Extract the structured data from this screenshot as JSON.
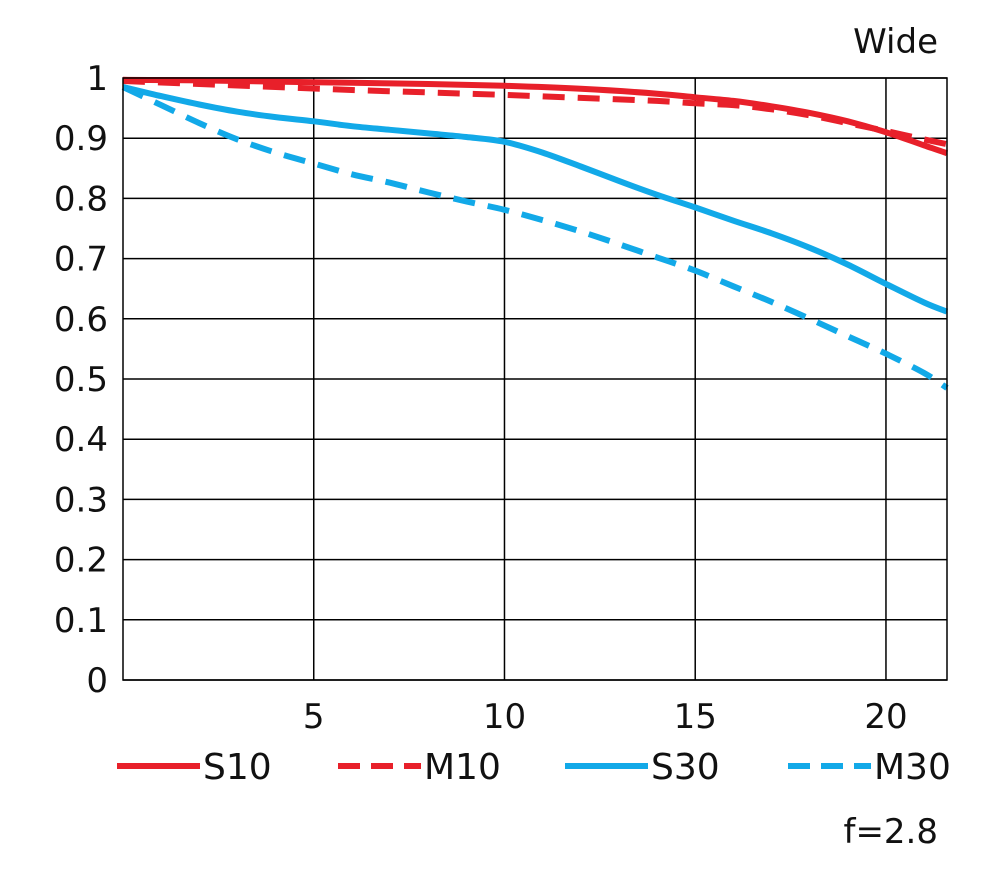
{
  "chart_data": {
    "type": "line",
    "title": "",
    "xlabel": "",
    "ylabel": "",
    "xlim": [
      0,
      21.6
    ],
    "ylim": [
      0,
      1
    ],
    "x_ticks": [
      5,
      10,
      15,
      20
    ],
    "y_ticks": [
      0,
      0.1,
      0.2,
      0.3,
      0.4,
      0.5,
      0.6,
      0.7,
      0.8,
      0.9,
      1
    ],
    "x_tick_labels": [
      "5",
      "10",
      "15",
      "20"
    ],
    "y_tick_labels": [
      "0",
      "0.1",
      "0.2",
      "0.3",
      "0.4",
      "0.5",
      "0.6",
      "0.7",
      "0.8",
      "0.9",
      "1"
    ],
    "grid": true,
    "top_right_label": "Wide",
    "bottom_right_label": "f=2.8",
    "legend_position": "bottom",
    "series": [
      {
        "name": "S10",
        "color": "#e8202a",
        "dashed": false,
        "points": [
          [
            0,
            0.997
          ],
          [
            2,
            0.996
          ],
          [
            4,
            0.994
          ],
          [
            6,
            0.992
          ],
          [
            8,
            0.99
          ],
          [
            10,
            0.987
          ],
          [
            12,
            0.982
          ],
          [
            14,
            0.974
          ],
          [
            15,
            0.968
          ],
          [
            16,
            0.962
          ],
          [
            17,
            0.953
          ],
          [
            18,
            0.942
          ],
          [
            19,
            0.928
          ],
          [
            20,
            0.91
          ],
          [
            21,
            0.888
          ],
          [
            21.6,
            0.875
          ]
        ]
      },
      {
        "name": "M10",
        "color": "#e8202a",
        "dashed": true,
        "points": [
          [
            0,
            0.995
          ],
          [
            2,
            0.99
          ],
          [
            4,
            0.985
          ],
          [
            6,
            0.98
          ],
          [
            8,
            0.976
          ],
          [
            10,
            0.972
          ],
          [
            12,
            0.967
          ],
          [
            14,
            0.962
          ],
          [
            15,
            0.958
          ],
          [
            16,
            0.955
          ],
          [
            17,
            0.948
          ],
          [
            18,
            0.938
          ],
          [
            19,
            0.925
          ],
          [
            20,
            0.912
          ],
          [
            21,
            0.898
          ],
          [
            21.6,
            0.89
          ]
        ]
      },
      {
        "name": "S30",
        "color": "#12a9e8",
        "dashed": false,
        "points": [
          [
            0,
            0.985
          ],
          [
            1,
            0.97
          ],
          [
            2,
            0.956
          ],
          [
            3,
            0.944
          ],
          [
            4,
            0.935
          ],
          [
            5,
            0.928
          ],
          [
            6,
            0.92
          ],
          [
            7,
            0.914
          ],
          [
            8,
            0.908
          ],
          [
            9,
            0.902
          ],
          [
            10,
            0.894
          ],
          [
            11,
            0.876
          ],
          [
            12,
            0.853
          ],
          [
            13,
            0.829
          ],
          [
            14,
            0.806
          ],
          [
            15,
            0.785
          ],
          [
            16,
            0.763
          ],
          [
            17,
            0.742
          ],
          [
            18,
            0.718
          ],
          [
            19,
            0.69
          ],
          [
            20,
            0.658
          ],
          [
            21,
            0.627
          ],
          [
            21.6,
            0.612
          ]
        ]
      },
      {
        "name": "M30",
        "color": "#12a9e8",
        "dashed": true,
        "points": [
          [
            0,
            0.985
          ],
          [
            1,
            0.955
          ],
          [
            2,
            0.925
          ],
          [
            3,
            0.898
          ],
          [
            4,
            0.876
          ],
          [
            5,
            0.858
          ],
          [
            6,
            0.84
          ],
          [
            7,
            0.826
          ],
          [
            8,
            0.81
          ],
          [
            9,
            0.795
          ],
          [
            10,
            0.781
          ],
          [
            11,
            0.764
          ],
          [
            12,
            0.745
          ],
          [
            13,
            0.724
          ],
          [
            14,
            0.702
          ],
          [
            15,
            0.68
          ],
          [
            16,
            0.654
          ],
          [
            17,
            0.628
          ],
          [
            18,
            0.6
          ],
          [
            19,
            0.571
          ],
          [
            20,
            0.542
          ],
          [
            21,
            0.51
          ],
          [
            21.6,
            0.485
          ]
        ]
      }
    ]
  }
}
